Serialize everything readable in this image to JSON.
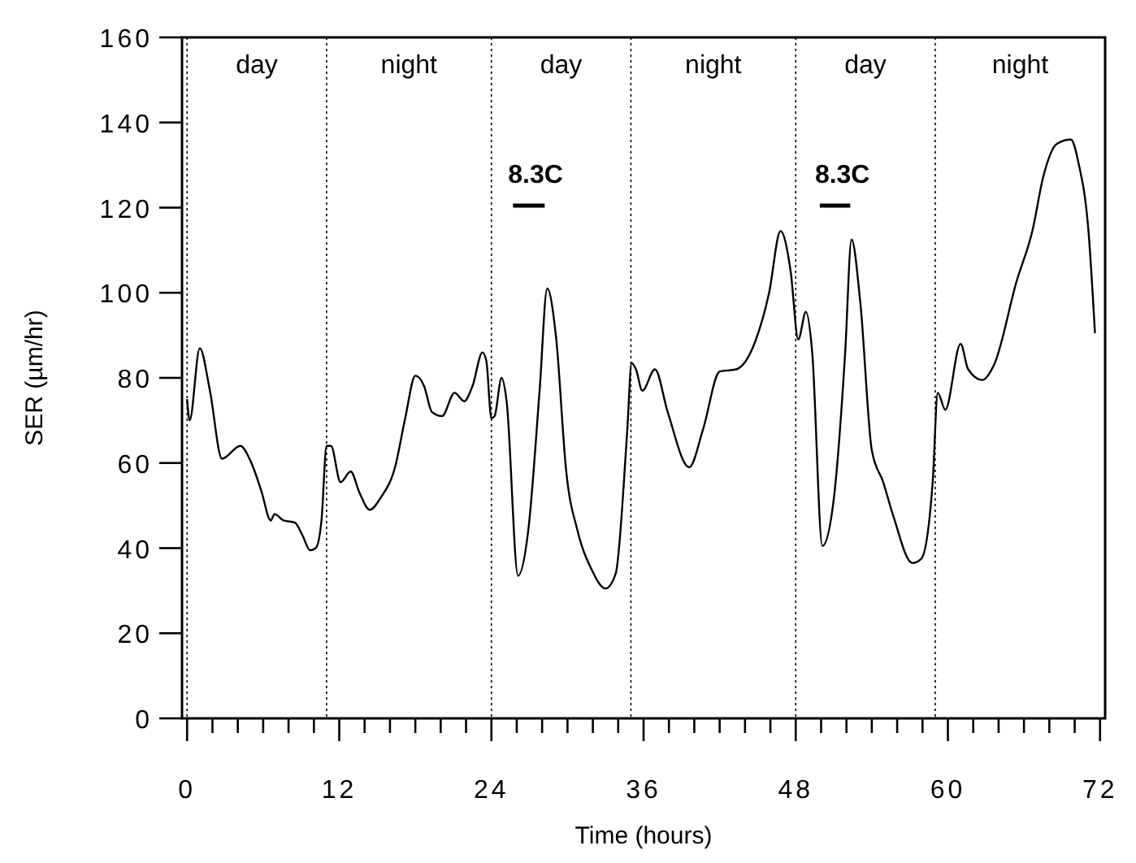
{
  "chart_data": {
    "type": "line",
    "xlabel": "Time (hours)",
    "ylabel": "SER (µm/hr)",
    "xlim": [
      -0.4,
      72.4
    ],
    "ylim": [
      0,
      160
    ],
    "xticks": [
      0,
      {
        "value": 2,
        "label": null
      },
      {
        "value": 4,
        "label": null
      },
      {
        "value": 6,
        "label": null
      },
      {
        "value": 8,
        "label": null
      },
      {
        "value": 10,
        "label": null
      },
      12,
      {
        "value": 14,
        "label": null
      },
      {
        "value": 16,
        "label": null
      },
      {
        "value": 18,
        "label": null
      },
      {
        "value": 20,
        "label": null
      },
      {
        "value": 22,
        "label": null
      },
      24,
      {
        "value": 26,
        "label": null
      },
      {
        "value": 28,
        "label": null
      },
      {
        "value": 30,
        "label": null
      },
      {
        "value": 32,
        "label": null
      },
      {
        "value": 34,
        "label": null
      },
      36,
      {
        "value": 38,
        "label": null
      },
      {
        "value": 40,
        "label": null
      },
      {
        "value": 42,
        "label": null
      },
      {
        "value": 44,
        "label": null
      },
      {
        "value": 46,
        "label": null
      },
      48,
      {
        "value": 50,
        "label": null
      },
      {
        "value": 52,
        "label": null
      },
      {
        "value": 54,
        "label": null
      },
      {
        "value": 56,
        "label": null
      },
      {
        "value": 58,
        "label": null
      },
      60,
      {
        "value": 62,
        "label": null
      },
      {
        "value": 64,
        "label": null
      },
      {
        "value": 66,
        "label": null
      },
      {
        "value": 68,
        "label": null
      },
      {
        "value": 70,
        "label": null
      },
      72
    ],
    "yticks": [
      0,
      20,
      40,
      60,
      80,
      100,
      120,
      140,
      160
    ],
    "grid": false,
    "marker": "none",
    "line_style": "solid",
    "series": [
      {
        "color": "#000000",
        "x": [
          0,
          0.2,
          1.0,
          1.8,
          2.75,
          4.2,
          5.0,
          5.85,
          6.6,
          6.9,
          7.6,
          8.5,
          9.1,
          9.7,
          10.15,
          10.6,
          11.0,
          11.35,
          12.1,
          12.9,
          13.6,
          14.4,
          15.3,
          16.4,
          17.2,
          18.0,
          18.7,
          19.3,
          20.1,
          21.1,
          21.85,
          22.5,
          23.3,
          23.6,
          24.0,
          24.25,
          24.8,
          25.2,
          26.1,
          26.9,
          27.8,
          28.4,
          29.1,
          29.9,
          30.8,
          31.9,
          33.0,
          33.8,
          34.7,
          35.06,
          35.4,
          35.9,
          36.9,
          37.9,
          39.6,
          40.7,
          42.0,
          43.3,
          44.8,
          45.9,
          46.8,
          47.6,
          48.2,
          48.8,
          49.3,
          50.1,
          51.0,
          51.9,
          52.4,
          53.1,
          54.0,
          54.9,
          55.7,
          57.2,
          57.9,
          58.8,
          59.2,
          59.8,
          61.0,
          61.6,
          62.7,
          63.7,
          65.4,
          66.7,
          67.5,
          68.6,
          69.7,
          70.3,
          71.1,
          71.6
        ],
        "values": [
          75,
          70,
          87,
          77,
          61,
          64,
          60.5,
          53.5,
          46.5,
          48,
          46.5,
          46,
          43,
          39.5,
          40,
          46.5,
          64,
          64,
          55.5,
          58,
          53,
          49,
          52,
          59,
          70.5,
          80.5,
          78,
          72,
          71,
          76.5,
          74.5,
          78,
          86,
          84,
          70.5,
          71,
          80,
          74.5,
          33.5,
          44,
          77,
          101,
          89.5,
          58,
          44,
          35,
          30.5,
          34,
          67,
          83.5,
          82,
          77,
          82,
          72,
          59,
          68,
          81.5,
          82,
          88.5,
          100,
          114.5,
          105,
          89,
          95.5,
          86,
          40.5,
          51.5,
          86,
          112.5,
          97.5,
          63,
          55.5,
          47.5,
          36.5,
          37.5,
          55.5,
          76.5,
          72.5,
          88,
          82,
          79.5,
          83.5,
          102.5,
          115,
          127,
          135,
          136,
          130.5,
          114,
          90.5
        ]
      },
      {
        "color": "#000000",
        "x": [
          25.7,
          28.2
        ],
        "values": [
          120.5,
          120.5
        ]
      },
      {
        "color": "#000000",
        "x": [
          49.9,
          52.3
        ],
        "values": [
          120.5,
          120.5
        ]
      }
    ],
    "ref_lines": [
      {
        "axis": "x",
        "value": 0,
        "line_style": "dotted"
      },
      {
        "axis": "x",
        "value": 11,
        "line_style": "dotted"
      },
      {
        "axis": "x",
        "value": 24,
        "line_style": "dotted"
      },
      {
        "axis": "x",
        "value": 35,
        "line_style": "dotted"
      },
      {
        "axis": "x",
        "value": 48,
        "line_style": "dotted"
      },
      {
        "axis": "x",
        "value": 59,
        "line_style": "dotted"
      }
    ],
    "annotations": [
      "day",
      "night",
      "day",
      "night",
      "day",
      "night",
      {
        "text": "8.3C",
        "x": 25.7,
        "y": 120.5
      },
      {
        "text": "8.3C",
        "x": 49.9,
        "y": 120.5
      }
    ]
  }
}
